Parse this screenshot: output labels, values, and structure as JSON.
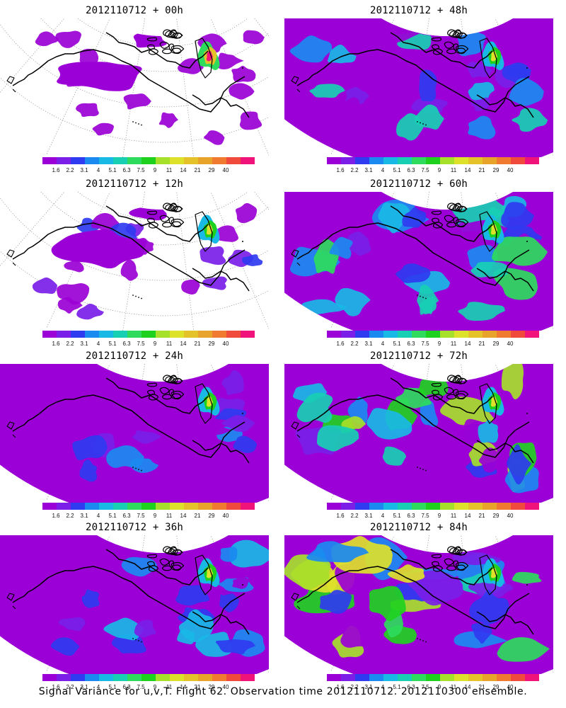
{
  "caption": "Signal Variance for u,v,T. Flight 62. Observation time 2012110712. 2012110300 ensemble.",
  "colorbar": {
    "colors": [
      "#9b00d6",
      "#7a1ee8",
      "#2f3bf0",
      "#1b8af0",
      "#19b9e6",
      "#18cfb4",
      "#2edb5c",
      "#1fd11f",
      "#a7e02a",
      "#dde12a",
      "#e6c22a",
      "#e8a32a",
      "#f07a30",
      "#f04a3c",
      "#f0147a"
    ],
    "labels": [
      "1.6",
      "2.2",
      "3.1",
      "4",
      "5.1",
      "6.3",
      "7.5",
      "9",
      "11",
      "14",
      "21",
      "29",
      "40"
    ]
  },
  "panels": [
    {
      "title": "2012110712 + 00h",
      "lead": 0
    },
    {
      "title": "2012110712 + 48h",
      "lead": 48
    },
    {
      "title": "2012110712 + 12h",
      "lead": 12
    },
    {
      "title": "2012110712 + 60h",
      "lead": 60
    },
    {
      "title": "2012110712 + 24h",
      "lead": 24
    },
    {
      "title": "2012110712 + 72h",
      "lead": 72
    },
    {
      "title": "2012110712 + 36h",
      "lead": 36
    },
    {
      "title": "2012110712 + 84h",
      "lead": 84
    }
  ],
  "map": {
    "coastline_color": "#000000",
    "grid_color": "#8a8a8a"
  }
}
